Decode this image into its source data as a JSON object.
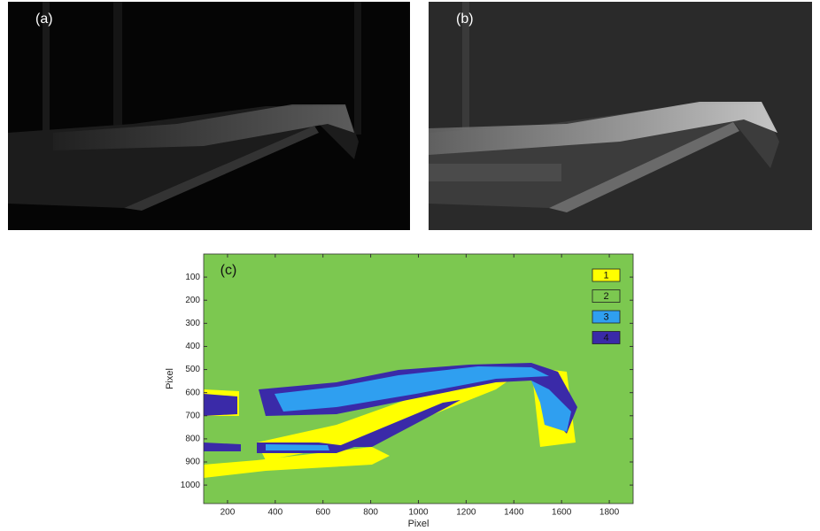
{
  "panels": [
    {
      "label": "(a)"
    },
    {
      "label": "(b)"
    }
  ],
  "chart_data": {
    "type": "image",
    "label": "(c)",
    "xlabel": "Pixel",
    "ylabel": "Pixel",
    "xlim": [
      100,
      1900
    ],
    "ylim": [
      0,
      1080
    ],
    "xticks": [
      200,
      400,
      600,
      800,
      1000,
      1200,
      1400,
      1600,
      1800
    ],
    "yticks": [
      100,
      200,
      300,
      400,
      500,
      600,
      700,
      800,
      900,
      1000
    ],
    "background": "#7cc850",
    "classes": [
      {
        "name": "1",
        "color": "#ffff00"
      },
      {
        "name": "2",
        "color": "#7cc850"
      },
      {
        "name": "3",
        "color": "#2f9ff0"
      },
      {
        "name": "4",
        "color": "#3a2aa8"
      }
    ]
  }
}
